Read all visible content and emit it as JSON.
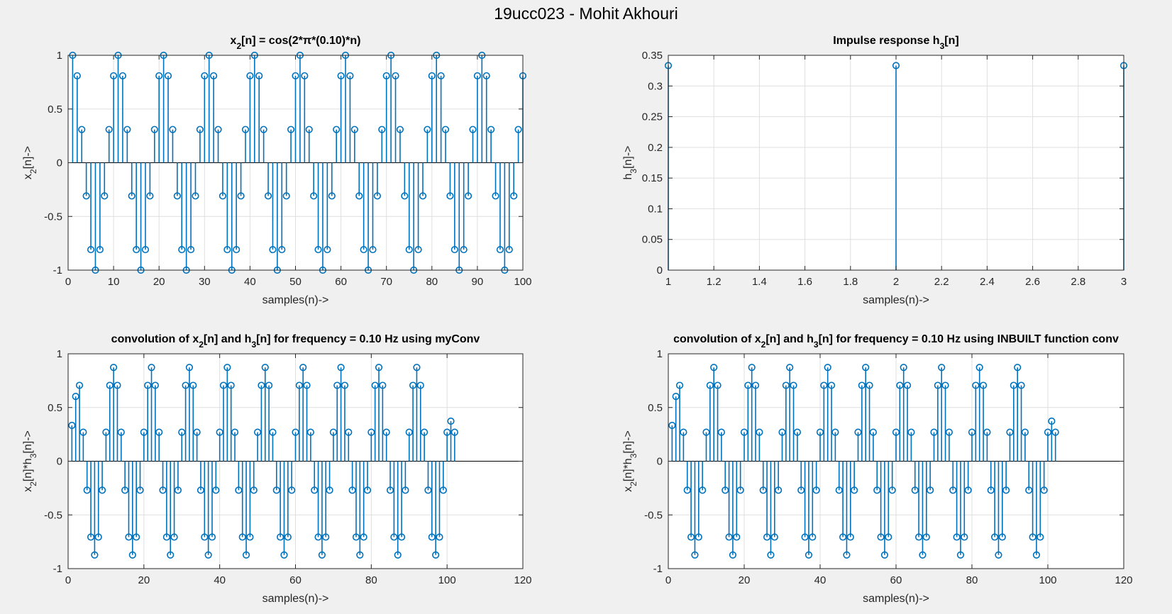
{
  "figure": {
    "title": "19ucc023 - Mohit Akhouri",
    "colors": {
      "stem": "#0072BD",
      "grid": "#dfdfdf",
      "axes": "#262626",
      "background": "#f0f0f0",
      "plot_bg": "#ffffff"
    }
  },
  "chart_data": [
    {
      "type": "stem",
      "title": {
        "main": "x",
        "sub": "2",
        "rest": "[n] = cos(2*π*(0.10)*n)"
      },
      "xlabel": "samples(n)->",
      "ylabel": {
        "main": "x",
        "sub": "2",
        "rest": "[n]->"
      },
      "xlim": [
        0,
        100
      ],
      "ylim": [
        -1,
        1
      ],
      "xticks": [
        0,
        10,
        20,
        30,
        40,
        50,
        60,
        70,
        80,
        90,
        100
      ],
      "yticks": [
        -1,
        -0.5,
        0,
        0.5,
        1
      ],
      "xtick_labels": [
        "0",
        "10",
        "20",
        "30",
        "40",
        "50",
        "60",
        "70",
        "80",
        "90",
        "100"
      ],
      "ytick_labels": [
        "-1",
        "-0.5",
        "0",
        "0.5",
        "1"
      ],
      "grid": true,
      "signal": "cos(2*pi*0.10*n)",
      "x": [
        1,
        2,
        3,
        4,
        5,
        6,
        7,
        8,
        9,
        10,
        11,
        12,
        13,
        14,
        15,
        16,
        17,
        18,
        19,
        20,
        21,
        22,
        23,
        24,
        25,
        26,
        27,
        28,
        29,
        30,
        31,
        32,
        33,
        34,
        35,
        36,
        37,
        38,
        39,
        40,
        41,
        42,
        43,
        44,
        45,
        46,
        47,
        48,
        49,
        50,
        51,
        52,
        53,
        54,
        55,
        56,
        57,
        58,
        59,
        60,
        61,
        62,
        63,
        64,
        65,
        66,
        67,
        68,
        69,
        70,
        71,
        72,
        73,
        74,
        75,
        76,
        77,
        78,
        79,
        80,
        81,
        82,
        83,
        84,
        85,
        86,
        87,
        88,
        89,
        90,
        91,
        92,
        93,
        94,
        95,
        96,
        97,
        98,
        99,
        100
      ],
      "values": [
        1,
        0.809,
        0.309,
        -0.309,
        -0.809,
        -1,
        -0.809,
        -0.309,
        0.309,
        0.809,
        1,
        0.809,
        0.309,
        -0.309,
        -0.809,
        -1,
        -0.809,
        -0.309,
        0.309,
        0.809,
        1,
        0.809,
        0.309,
        -0.309,
        -0.809,
        -1,
        -0.809,
        -0.309,
        0.309,
        0.809,
        1,
        0.809,
        0.309,
        -0.309,
        -0.809,
        -1,
        -0.809,
        -0.309,
        0.309,
        0.809,
        1,
        0.809,
        0.309,
        -0.309,
        -0.809,
        -1,
        -0.809,
        -0.309,
        0.309,
        0.809,
        1,
        0.809,
        0.309,
        -0.309,
        -0.809,
        -1,
        -0.809,
        -0.309,
        0.309,
        0.809,
        1,
        0.809,
        0.309,
        -0.309,
        -0.809,
        -1,
        -0.809,
        -0.309,
        0.309,
        0.809,
        1,
        0.809,
        0.309,
        -0.309,
        -0.809,
        -1,
        -0.809,
        -0.309,
        0.309,
        0.809,
        1,
        0.809,
        0.309,
        -0.309,
        -0.809,
        -1,
        -0.809,
        -0.309,
        0.309,
        0.809,
        1,
        0.809,
        0.309,
        -0.309,
        -0.809,
        -1,
        -0.809,
        -0.309,
        0.309,
        0.809
      ]
    },
    {
      "type": "stem",
      "title": {
        "main": "Impulse response h",
        "sub": "3",
        "rest": "[n]"
      },
      "xlabel": "samples(n)->",
      "ylabel": {
        "main": "h",
        "sub": "3",
        "rest": "[n]->"
      },
      "xlim": [
        1,
        3
      ],
      "ylim": [
        0,
        0.35
      ],
      "xticks": [
        1,
        1.2,
        1.4,
        1.6,
        1.8,
        2,
        2.2,
        2.4,
        2.6,
        2.8,
        3
      ],
      "yticks": [
        0,
        0.05,
        0.1,
        0.15,
        0.2,
        0.25,
        0.3,
        0.35
      ],
      "xtick_labels": [
        "1",
        "1.2",
        "1.4",
        "1.6",
        "1.8",
        "2",
        "2.2",
        "2.4",
        "2.6",
        "2.8",
        "3"
      ],
      "ytick_labels": [
        "0",
        "0.05",
        "0.1",
        "0.15",
        "0.2",
        "0.25",
        "0.3",
        "0.35"
      ],
      "grid": true,
      "x": [
        1,
        2,
        3
      ],
      "values": [
        0.3333,
        0.3333,
        0.3333
      ]
    },
    {
      "type": "stem",
      "title": {
        "main": "convolution of x",
        "sub": "2",
        "rest": "[n] and h",
        "sub2": "3",
        "rest2": "[n] for frequency = 0.10 Hz using myConv"
      },
      "xlabel": "samples(n)->",
      "ylabel": {
        "main": "x",
        "sub": "2",
        "rest": "[n]*h",
        "sub2": "3",
        "rest2": "[n]->"
      },
      "xlim": [
        0,
        120
      ],
      "ylim": [
        -1,
        1
      ],
      "xticks": [
        0,
        20,
        40,
        60,
        80,
        100,
        120
      ],
      "yticks": [
        -1,
        -0.5,
        0,
        0.5,
        1
      ],
      "xtick_labels": [
        "0",
        "20",
        "40",
        "60",
        "80",
        "100",
        "120"
      ],
      "ytick_labels": [
        "-1",
        "-0.5",
        "0",
        "0.5",
        "1"
      ],
      "grid": true,
      "x": [
        1,
        2,
        3,
        4,
        5,
        6,
        7,
        8,
        9,
        10,
        11,
        12,
        13,
        14,
        15,
        16,
        17,
        18,
        19,
        20,
        21,
        22,
        23,
        24,
        25,
        26,
        27,
        28,
        29,
        30,
        31,
        32,
        33,
        34,
        35,
        36,
        37,
        38,
        39,
        40,
        41,
        42,
        43,
        44,
        45,
        46,
        47,
        48,
        49,
        50,
        51,
        52,
        53,
        54,
        55,
        56,
        57,
        58,
        59,
        60,
        61,
        62,
        63,
        64,
        65,
        66,
        67,
        68,
        69,
        70,
        71,
        72,
        73,
        74,
        75,
        76,
        77,
        78,
        79,
        80,
        81,
        82,
        83,
        84,
        85,
        86,
        87,
        88,
        89,
        90,
        91,
        92,
        93,
        94,
        95,
        96,
        97,
        98,
        99,
        100,
        101,
        102
      ],
      "values": [
        0.3333,
        0.603,
        0.706,
        0.2697,
        -0.2697,
        -0.706,
        -0.8727,
        -0.706,
        -0.2697,
        0.2697,
        0.706,
        0.8727,
        0.706,
        0.2697,
        -0.2697,
        -0.706,
        -0.8727,
        -0.706,
        -0.2697,
        0.2697,
        0.706,
        0.8727,
        0.706,
        0.2697,
        -0.2697,
        -0.706,
        -0.8727,
        -0.706,
        -0.2697,
        0.2697,
        0.706,
        0.8727,
        0.706,
        0.2697,
        -0.2697,
        -0.706,
        -0.8727,
        -0.706,
        -0.2697,
        0.2697,
        0.706,
        0.8727,
        0.706,
        0.2697,
        -0.2697,
        -0.706,
        -0.8727,
        -0.706,
        -0.2697,
        0.2697,
        0.706,
        0.8727,
        0.706,
        0.2697,
        -0.2697,
        -0.706,
        -0.8727,
        -0.706,
        -0.2697,
        0.2697,
        0.706,
        0.8727,
        0.706,
        0.2697,
        -0.2697,
        -0.706,
        -0.8727,
        -0.706,
        -0.2697,
        0.2697,
        0.706,
        0.8727,
        0.706,
        0.2697,
        -0.2697,
        -0.706,
        -0.8727,
        -0.706,
        -0.2697,
        0.2697,
        0.706,
        0.8727,
        0.706,
        0.2697,
        -0.2697,
        -0.706,
        -0.8727,
        -0.706,
        -0.2697,
        0.2697,
        0.706,
        0.8727,
        0.706,
        0.2697,
        -0.2697,
        -0.706,
        -0.8727,
        -0.706,
        -0.2697,
        0.2697,
        0.3727,
        0.2697
      ]
    },
    {
      "type": "stem",
      "title": {
        "main": "convolution of x",
        "sub": "2",
        "rest": "[n] and h",
        "sub2": "3",
        "rest2": "[n] for frequency = 0.10 Hz using INBUILT function conv"
      },
      "xlabel": "samples(n)->",
      "ylabel": {
        "main": "x",
        "sub": "2",
        "rest": "[n]*h",
        "sub2": "3",
        "rest2": "[n]->"
      },
      "xlim": [
        0,
        120
      ],
      "ylim": [
        -1,
        1
      ],
      "xticks": [
        0,
        20,
        40,
        60,
        80,
        100,
        120
      ],
      "yticks": [
        -1,
        -0.5,
        0,
        0.5,
        1
      ],
      "xtick_labels": [
        "0",
        "20",
        "40",
        "60",
        "80",
        "100",
        "120"
      ],
      "ytick_labels": [
        "-1",
        "-0.5",
        "0",
        "0.5",
        "1"
      ],
      "grid": true,
      "x": [
        1,
        2,
        3,
        4,
        5,
        6,
        7,
        8,
        9,
        10,
        11,
        12,
        13,
        14,
        15,
        16,
        17,
        18,
        19,
        20,
        21,
        22,
        23,
        24,
        25,
        26,
        27,
        28,
        29,
        30,
        31,
        32,
        33,
        34,
        35,
        36,
        37,
        38,
        39,
        40,
        41,
        42,
        43,
        44,
        45,
        46,
        47,
        48,
        49,
        50,
        51,
        52,
        53,
        54,
        55,
        56,
        57,
        58,
        59,
        60,
        61,
        62,
        63,
        64,
        65,
        66,
        67,
        68,
        69,
        70,
        71,
        72,
        73,
        74,
        75,
        76,
        77,
        78,
        79,
        80,
        81,
        82,
        83,
        84,
        85,
        86,
        87,
        88,
        89,
        90,
        91,
        92,
        93,
        94,
        95,
        96,
        97,
        98,
        99,
        100,
        101,
        102
      ],
      "values": [
        0.3333,
        0.603,
        0.706,
        0.2697,
        -0.2697,
        -0.706,
        -0.8727,
        -0.706,
        -0.2697,
        0.2697,
        0.706,
        0.8727,
        0.706,
        0.2697,
        -0.2697,
        -0.706,
        -0.8727,
        -0.706,
        -0.2697,
        0.2697,
        0.706,
        0.8727,
        0.706,
        0.2697,
        -0.2697,
        -0.706,
        -0.8727,
        -0.706,
        -0.2697,
        0.2697,
        0.706,
        0.8727,
        0.706,
        0.2697,
        -0.2697,
        -0.706,
        -0.8727,
        -0.706,
        -0.2697,
        0.2697,
        0.706,
        0.8727,
        0.706,
        0.2697,
        -0.2697,
        -0.706,
        -0.8727,
        -0.706,
        -0.2697,
        0.2697,
        0.706,
        0.8727,
        0.706,
        0.2697,
        -0.2697,
        -0.706,
        -0.8727,
        -0.706,
        -0.2697,
        0.2697,
        0.706,
        0.8727,
        0.706,
        0.2697,
        -0.2697,
        -0.706,
        -0.8727,
        -0.706,
        -0.2697,
        0.2697,
        0.706,
        0.8727,
        0.706,
        0.2697,
        -0.2697,
        -0.706,
        -0.8727,
        -0.706,
        -0.2697,
        0.2697,
        0.706,
        0.8727,
        0.706,
        0.2697,
        -0.2697,
        -0.706,
        -0.8727,
        -0.706,
        -0.2697,
        0.2697,
        0.706,
        0.8727,
        0.706,
        0.2697,
        -0.2697,
        -0.706,
        -0.8727,
        -0.706,
        -0.2697,
        0.2697,
        0.3727,
        0.2697
      ]
    }
  ]
}
